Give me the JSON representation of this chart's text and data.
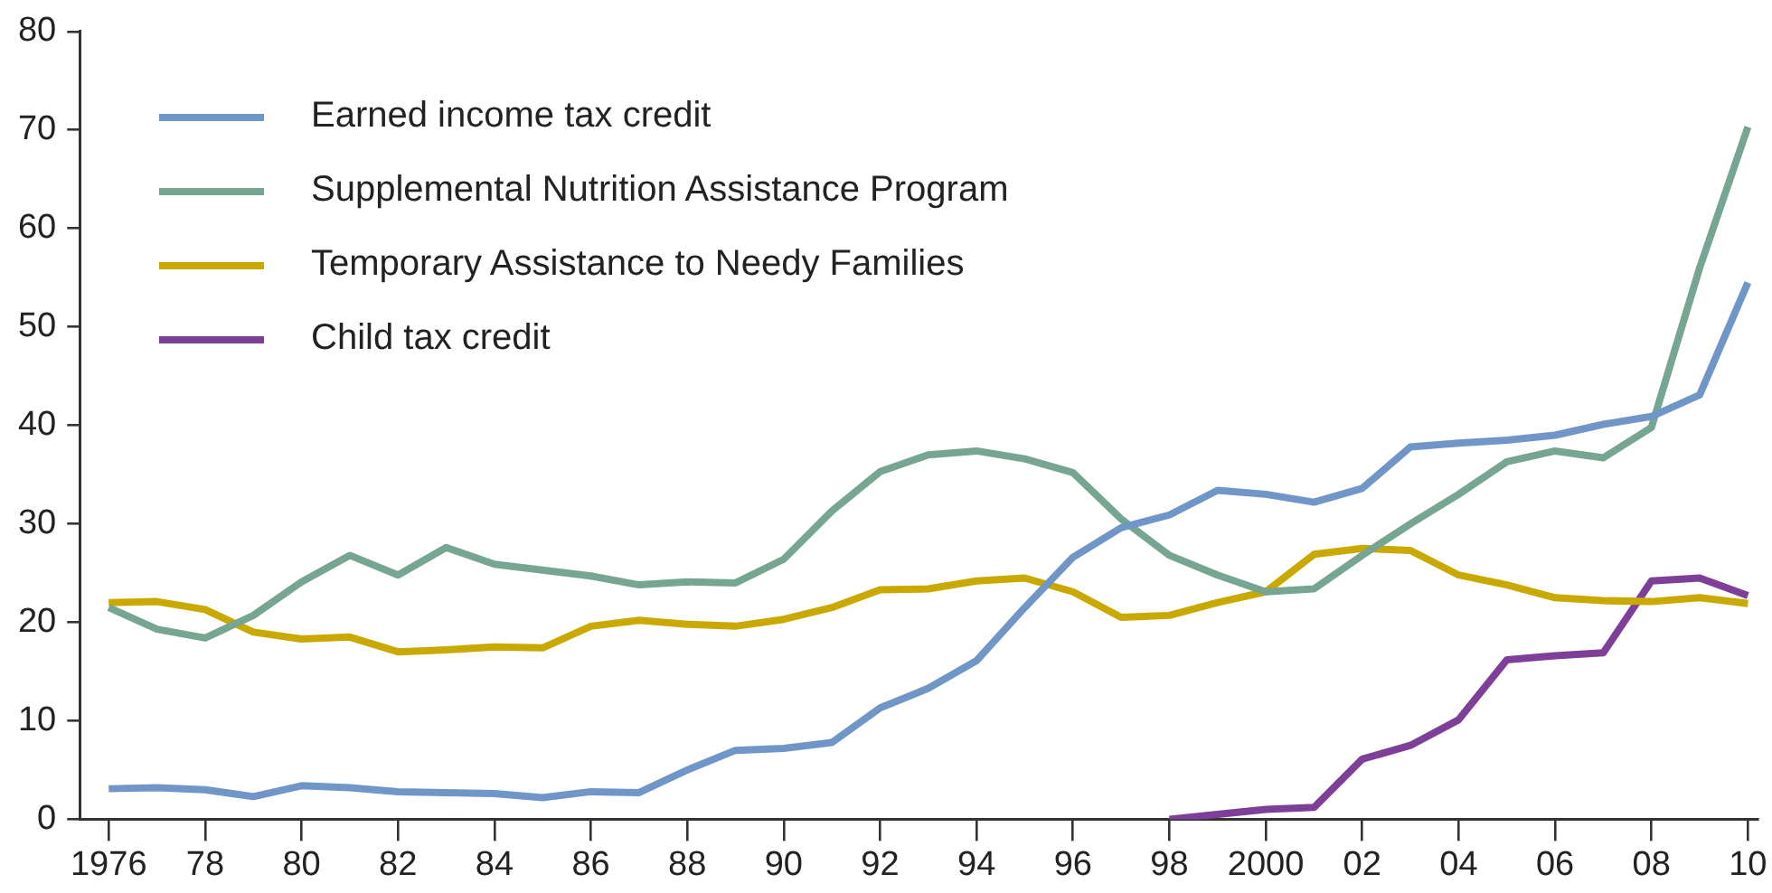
{
  "chart_data": {
    "type": "line",
    "x": [
      1976,
      1977,
      1978,
      1979,
      1980,
      1981,
      1982,
      1983,
      1984,
      1985,
      1986,
      1987,
      1988,
      1989,
      1990,
      1991,
      1992,
      1993,
      1994,
      1995,
      1996,
      1997,
      1998,
      1999,
      2000,
      2001,
      2002,
      2003,
      2004,
      2005,
      2006,
      2007,
      2008,
      2009,
      2010
    ],
    "series": [
      {
        "name": "Earned income tax credit",
        "color": "#7096c8",
        "values": [
          3.1,
          3.2,
          3.0,
          2.3,
          3.4,
          3.2,
          2.8,
          2.7,
          2.6,
          2.2,
          2.8,
          2.7,
          5.0,
          7.0,
          7.2,
          7.8,
          11.3,
          13.3,
          16.1,
          21.5,
          26.6,
          29.6,
          30.9,
          33.4,
          33.0,
          32.2,
          33.6,
          37.8,
          38.2,
          38.5,
          39.0,
          40.1,
          40.9,
          43.1,
          54.5
        ]
      },
      {
        "name": "Supplemental Nutrition Assistance Program",
        "color": "#76a692",
        "values": [
          21.5,
          19.3,
          18.4,
          20.7,
          24.1,
          26.8,
          24.8,
          27.6,
          25.9,
          25.3,
          24.7,
          23.8,
          24.1,
          24.0,
          26.4,
          31.3,
          35.3,
          37.0,
          37.4,
          36.6,
          35.2,
          30.5,
          26.8,
          24.8,
          23.1,
          23.4,
          26.8,
          30.0,
          33.0,
          36.3,
          37.4,
          36.7,
          39.8,
          56.0,
          70.3
        ]
      },
      {
        "name": "Temporary Assistance to Needy Families",
        "color": "#c9a800",
        "values": [
          22.0,
          22.1,
          21.3,
          19.0,
          18.3,
          18.5,
          17.0,
          17.2,
          17.5,
          17.4,
          19.6,
          20.2,
          19.8,
          19.6,
          20.3,
          21.5,
          23.3,
          23.4,
          24.2,
          24.5,
          23.1,
          20.5,
          20.7,
          22.0,
          23.1,
          26.9,
          27.5,
          27.3,
          24.8,
          23.8,
          22.5,
          22.2,
          22.1,
          22.5,
          21.9
        ]
      },
      {
        "name": "Child tax credit",
        "color": "#7e3f98",
        "values": [
          null,
          null,
          null,
          null,
          null,
          null,
          null,
          null,
          null,
          null,
          null,
          null,
          null,
          null,
          null,
          null,
          null,
          null,
          null,
          null,
          null,
          null,
          0,
          0.5,
          1.0,
          1.2,
          6.1,
          7.5,
          10.1,
          16.2,
          16.6,
          16.9,
          24.2,
          24.5,
          22.7
        ]
      }
    ],
    "xlim": [
      1975.4,
      2010.2
    ],
    "xticks": [
      1976,
      {
        "value": 1978,
        "label": "78"
      },
      {
        "value": 1980,
        "label": "80"
      },
      {
        "value": 1982,
        "label": "82"
      },
      {
        "value": 1984,
        "label": "84"
      },
      {
        "value": 1986,
        "label": "86"
      },
      {
        "value": 1988,
        "label": "88"
      },
      {
        "value": 1990,
        "label": "90"
      },
      {
        "value": 1992,
        "label": "92"
      },
      {
        "value": 1994,
        "label": "94"
      },
      {
        "value": 1996,
        "label": "96"
      },
      {
        "value": 1998,
        "label": "98"
      },
      2000,
      {
        "value": 2002,
        "label": "02"
      },
      {
        "value": 2004,
        "label": "04"
      },
      {
        "value": 2006,
        "label": "06"
      },
      {
        "value": 2008,
        "label": "08"
      },
      {
        "value": 2010,
        "label": "10"
      }
    ],
    "ylim": [
      0,
      80
    ],
    "yticks": [
      0,
      10,
      20,
      30,
      40,
      50,
      60,
      70,
      80
    ],
    "grid": false,
    "legend": "top left",
    "marker": "none",
    "line_style": "solid"
  }
}
